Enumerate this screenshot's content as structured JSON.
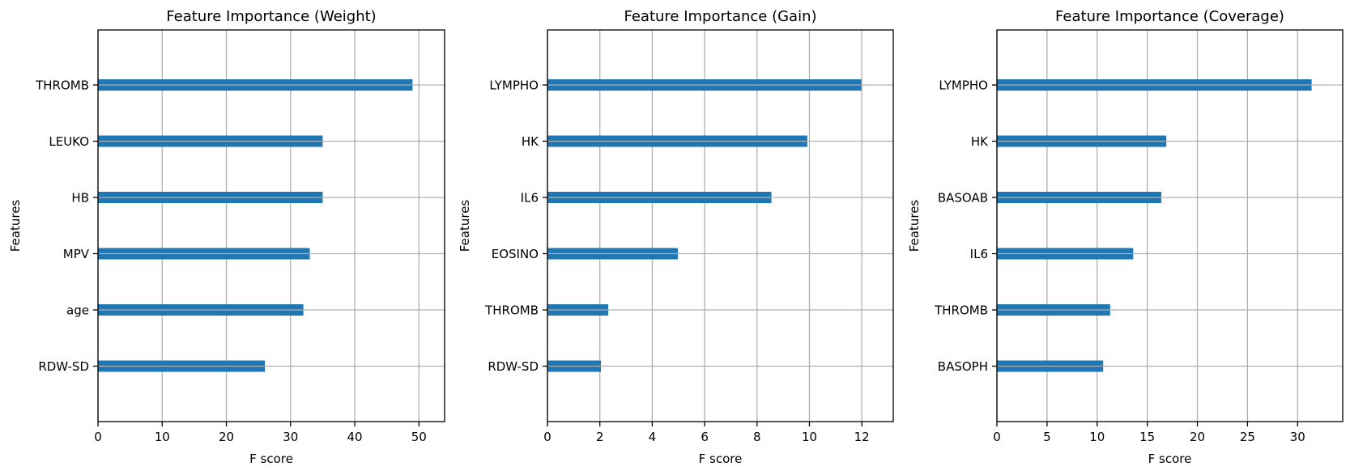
{
  "chart_data": [
    {
      "type": "bar",
      "orientation": "horizontal",
      "title": "Feature Importance (Weight)",
      "xlabel": "F score",
      "ylabel": "Features",
      "categories": [
        "THROMB",
        "LEUKO",
        "HB",
        "MPV",
        "age",
        "RDW-SD"
      ],
      "values": [
        49,
        35,
        35,
        33,
        32,
        26
      ],
      "xlim": [
        0,
        54
      ],
      "xticks": [
        0,
        10,
        20,
        30,
        40,
        50
      ],
      "grid": true,
      "bar_color": "#1f77b4"
    },
    {
      "type": "bar",
      "orientation": "horizontal",
      "title": "Feature Importance (Gain)",
      "xlabel": "F score",
      "ylabel": "Features",
      "categories": [
        "LYMPHO",
        "HK",
        "IL6",
        "EOSINO",
        "THROMB",
        "RDW-SD"
      ],
      "values": [
        11.98,
        9.92,
        8.55,
        4.98,
        2.32,
        2.04
      ],
      "xlim": [
        0,
        13.2
      ],
      "xticks": [
        0,
        2,
        4,
        6,
        8,
        10,
        12
      ],
      "grid": true,
      "bar_color": "#1f77b4"
    },
    {
      "type": "bar",
      "orientation": "horizontal",
      "title": "Feature Importance (Coverage)",
      "xlabel": "F score",
      "ylabel": "Features",
      "categories": [
        "LYMPHO",
        "HK",
        "BASOAB",
        "IL6",
        "THROMB",
        "BASOPH"
      ],
      "values": [
        31.4,
        16.9,
        16.4,
        13.6,
        11.3,
        10.6
      ],
      "xlim": [
        0,
        34.5
      ],
      "xticks": [
        0,
        5,
        10,
        15,
        20,
        25,
        30
      ],
      "grid": true,
      "bar_color": "#1f77b4"
    }
  ]
}
